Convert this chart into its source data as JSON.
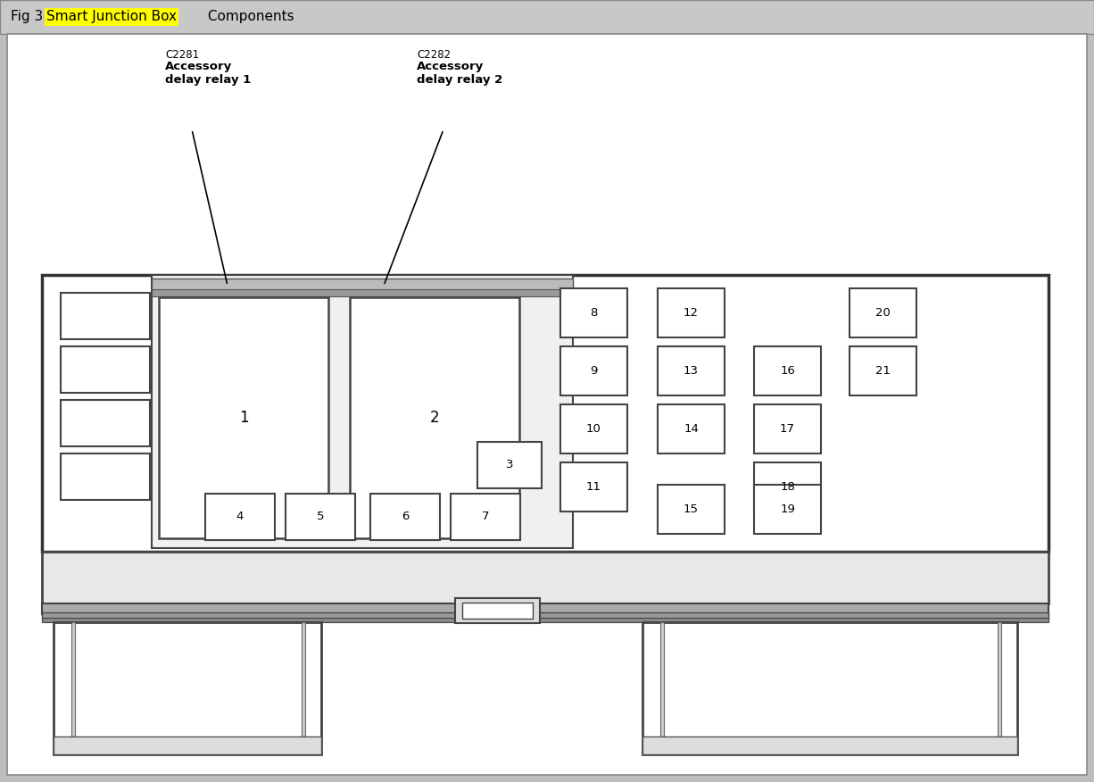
{
  "fig_w": 12.26,
  "fig_h": 8.76,
  "dpi": 100,
  "title_prefix": "Fig 3: ",
  "title_highlight": "Smart Junction Box",
  "title_suffix": " Components",
  "title_highlight_color": "#FFFF00",
  "header_color": "#C8C8C8",
  "bg_color": "#FFFFFF",
  "label1_code": "C2281",
  "label1_bold": "Accessory\ndelay relay 1",
  "label2_code": "C2282",
  "label2_bold": "Accessory\ndelay relay 2",
  "fuse_boxes": [
    {
      "label": "8",
      "col": 0,
      "row": 0
    },
    {
      "label": "9",
      "col": 0,
      "row": 1
    },
    {
      "label": "10",
      "col": 0,
      "row": 2
    },
    {
      "label": "11",
      "col": 0,
      "row": 3
    },
    {
      "label": "12",
      "col": 1,
      "row": 0
    },
    {
      "label": "13",
      "col": 1,
      "row": 1
    },
    {
      "label": "14",
      "col": 1,
      "row": 2
    },
    {
      "label": "15",
      "col": 1,
      "row": 4
    },
    {
      "label": "16",
      "col": 2,
      "row": 1
    },
    {
      "label": "17",
      "col": 2,
      "row": 2
    },
    {
      "label": "18",
      "col": 2,
      "row": 3
    },
    {
      "label": "19",
      "col": 2,
      "row": 4
    },
    {
      "label": "20",
      "col": 3,
      "row": 0
    },
    {
      "label": "21",
      "col": 3,
      "row": 1
    }
  ]
}
